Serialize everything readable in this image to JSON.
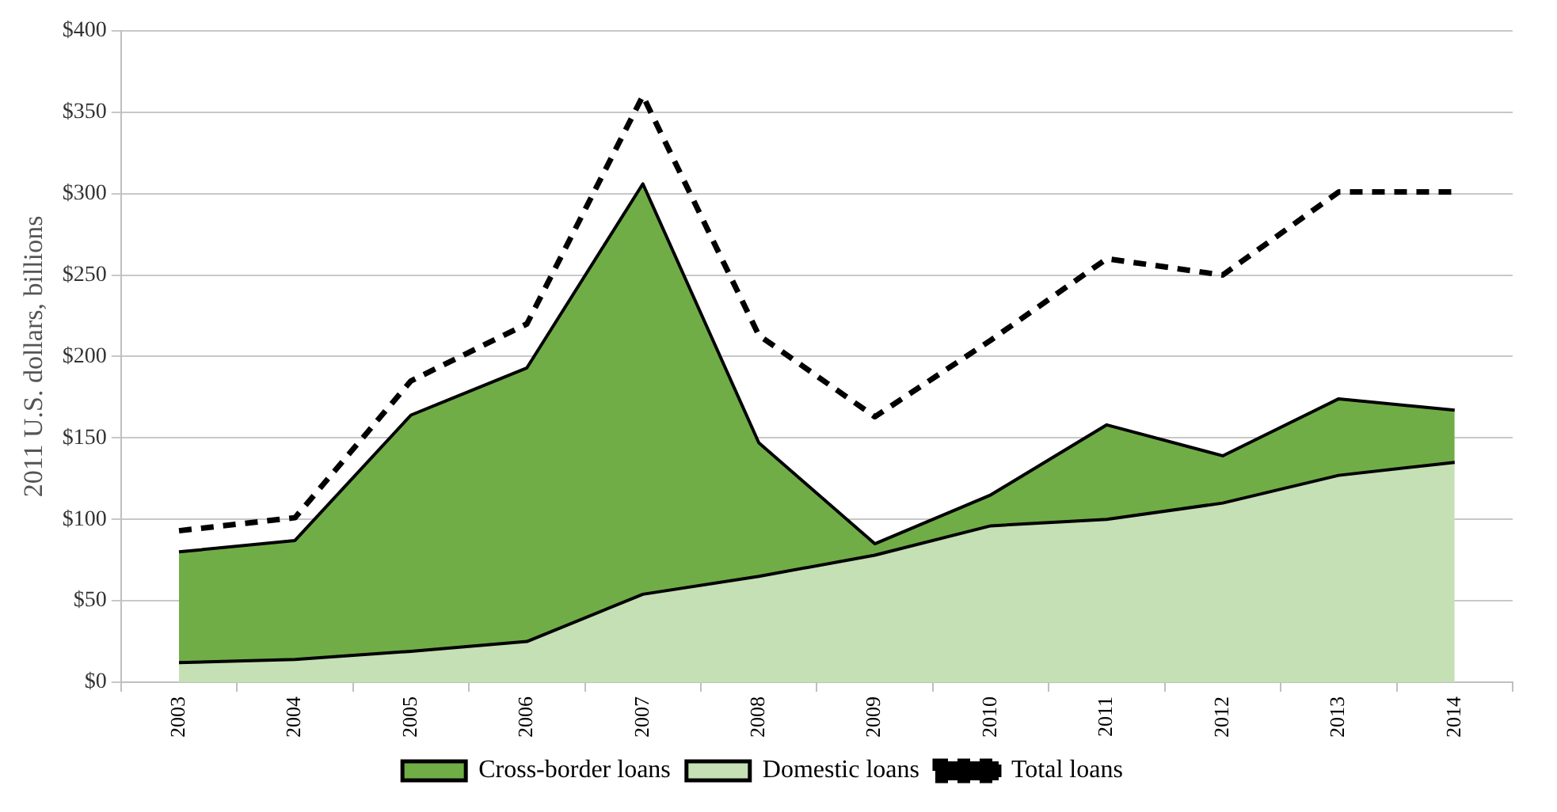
{
  "chart_data": {
    "type": "area",
    "ylabel": "2011 U.S. dollars, billions",
    "categories": [
      "2003",
      "2004",
      "2005",
      "2006",
      "2007",
      "2008",
      "2009",
      "2010",
      "2011",
      "2012",
      "2013",
      "2014"
    ],
    "stacked": true,
    "series": [
      {
        "name": "Domestic loans",
        "color": "#c5e0b4",
        "values": [
          12,
          14,
          19,
          25,
          54,
          65,
          78,
          96,
          100,
          110,
          127,
          135
        ]
      },
      {
        "name": "Cross-border loans",
        "color": "#70ad47",
        "values": [
          68,
          73,
          145,
          168,
          252,
          82,
          7,
          19,
          58,
          29,
          47,
          32
        ]
      },
      {
        "name": "Total loans",
        "type": "line",
        "color": "#000000",
        "line_style": "dashed",
        "values": [
          93,
          101,
          185,
          220,
          360,
          213,
          163,
          210,
          260,
          250,
          301,
          301
        ]
      }
    ],
    "ylim": [
      0,
      400
    ],
    "yticks": [
      {
        "value": 0,
        "label": "$0"
      },
      {
        "value": 50,
        "label": "$50"
      },
      {
        "value": 100,
        "label": "$100"
      },
      {
        "value": 150,
        "label": "$150"
      },
      {
        "value": 200,
        "label": "$200"
      },
      {
        "value": 250,
        "label": "$250"
      },
      {
        "value": 300,
        "label": "$300"
      },
      {
        "value": 350,
        "label": "$350"
      },
      {
        "value": 400,
        "label": "$400"
      }
    ],
    "grid": "y",
    "legend": "bottom",
    "marker": "none"
  }
}
